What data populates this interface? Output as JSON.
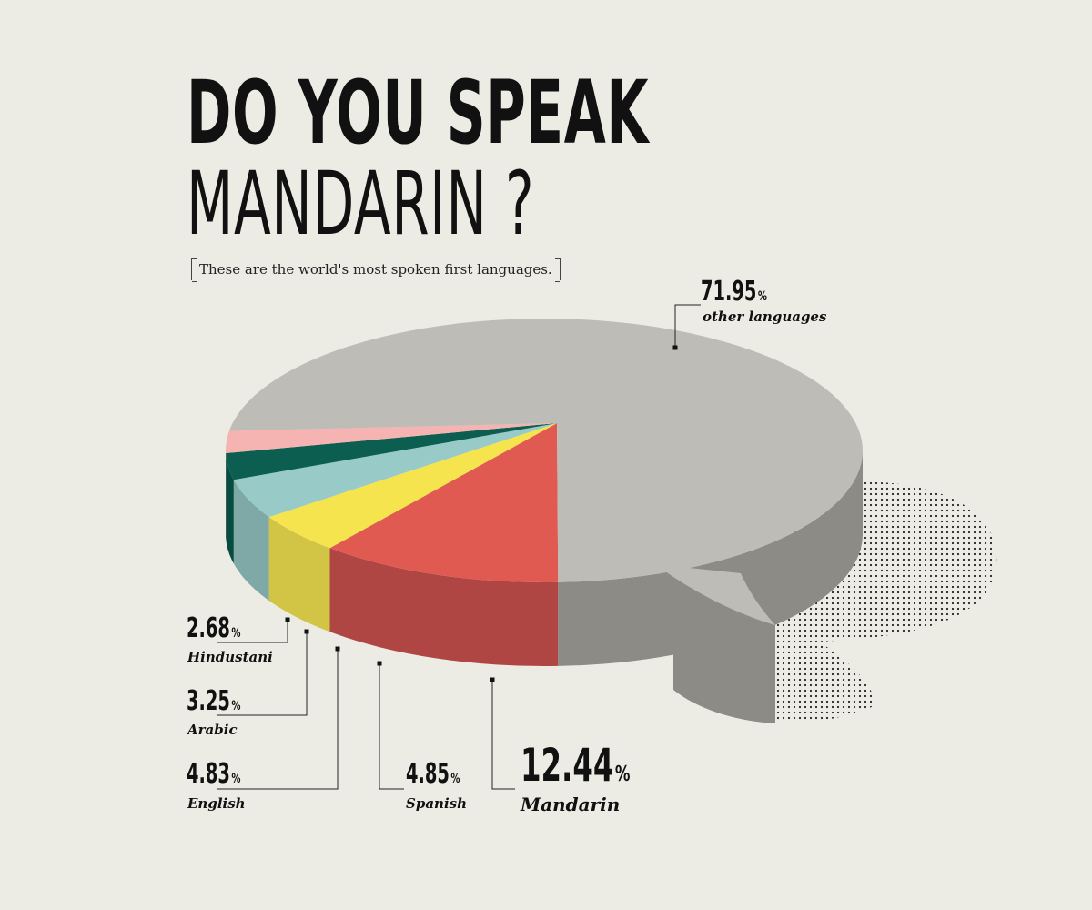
{
  "header": {
    "title_line1": "DO YOU SPEAK",
    "title_line2": "MANDARIN ?",
    "subtitle": "These are the world's most spoken first languages."
  },
  "chart_data": {
    "type": "pie",
    "title": "DO YOU SPEAK MANDARIN ?",
    "subtitle": "These are the world's most spoken first languages.",
    "unit": "%",
    "slices": [
      {
        "label": "Mandarin",
        "value": 12.44,
        "value_text": "12.44",
        "color": "#e05a52",
        "side_color": "#b04643"
      },
      {
        "label": "Spanish",
        "value": 4.85,
        "value_text": "4.85",
        "color": "#f5e44d",
        "side_color": "#d2c445"
      },
      {
        "label": "English",
        "value": 4.83,
        "value_text": "4.83",
        "color": "#98cbc8",
        "side_color": "#7ea9a6"
      },
      {
        "label": "Arabic",
        "value": 3.25,
        "value_text": "3.25",
        "color": "#0b5e50",
        "side_color": "#074c41"
      },
      {
        "label": "Hindustani",
        "value": 2.68,
        "value_text": "2.68",
        "color": "#f5b3b1",
        "side_color": "#d59d9b"
      },
      {
        "label": "other languages",
        "value": 71.95,
        "value_text": "71.95",
        "color": "#bdbcb7",
        "side_color": "#8c8b86"
      }
    ]
  }
}
